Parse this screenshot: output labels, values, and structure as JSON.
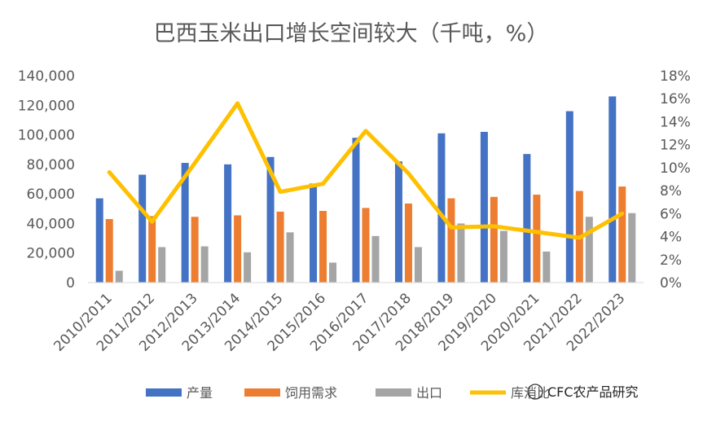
{
  "chart_data": {
    "type": "bar",
    "title": "巴西玉米出口增长空间较大（千吨，%）",
    "categories": [
      "2010/2011",
      "2011/2012",
      "2012/2013",
      "2013/2014",
      "2014/2015",
      "2015/2016",
      "2016/2017",
      "2017/2018",
      "2018/2019",
      "2019/2020",
      "2020/2021",
      "2021/2022",
      "2022/2023"
    ],
    "series": [
      {
        "name": "产量",
        "type": "bar",
        "axis": "left",
        "color": "#4472C4",
        "values": [
          57000,
          73000,
          81000,
          80000,
          85000,
          67000,
          98000,
          82000,
          101000,
          102000,
          87000,
          116000,
          126000
        ]
      },
      {
        "name": "饲用需求",
        "type": "bar",
        "axis": "left",
        "color": "#ED7D31",
        "values": [
          43000,
          45000,
          44500,
          45500,
          48000,
          48500,
          50500,
          53500,
          57000,
          58000,
          59500,
          62000,
          65000
        ]
      },
      {
        "name": "出口",
        "type": "bar",
        "axis": "left",
        "color": "#A5A5A5",
        "values": [
          8000,
          24000,
          24500,
          20500,
          34000,
          13500,
          31500,
          24000,
          40000,
          35000,
          21000,
          44500,
          47000
        ]
      },
      {
        "name": "库消比",
        "type": "line",
        "axis": "right",
        "color": "#FFC000",
        "values": [
          9.6,
          5.3,
          10.4,
          15.6,
          7.9,
          8.6,
          13.2,
          9.5,
          4.8,
          4.9,
          4.4,
          3.9,
          6.0
        ]
      }
    ],
    "y_left": {
      "ylim": [
        0,
        140000
      ],
      "ticks": [
        "0",
        "20,000",
        "40,000",
        "60,000",
        "80,000",
        "100,000",
        "120,000",
        "140,000"
      ]
    },
    "y_right": {
      "ylim": [
        0,
        18
      ],
      "ticks": [
        "0%",
        "2%",
        "4%",
        "6%",
        "8%",
        "10%",
        "12%",
        "14%",
        "16%",
        "18%"
      ]
    },
    "grid": false,
    "legend": "bottom"
  },
  "watermark": "CFC农产品研究"
}
